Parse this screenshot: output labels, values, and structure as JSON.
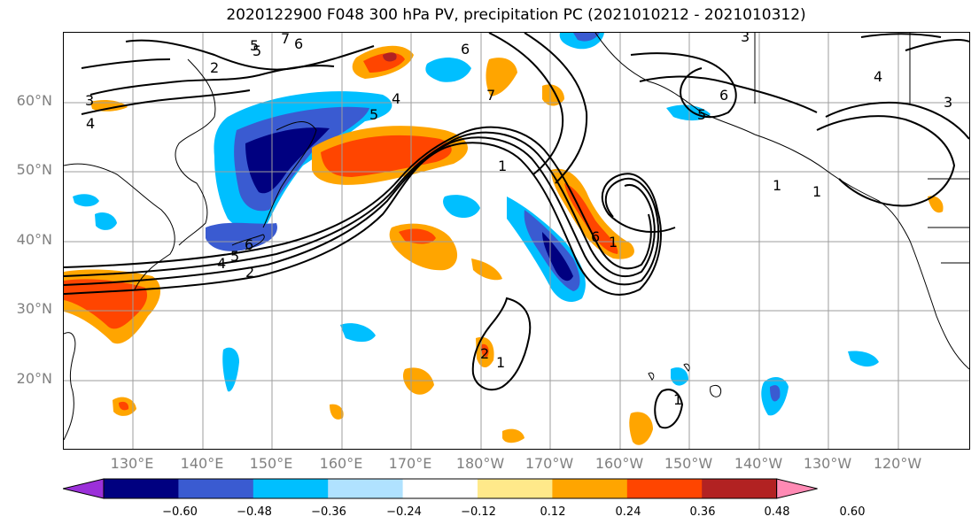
{
  "title": "2020122900 F048 300 hPa PV, precipitation PC (2021010212 - 2021010312)",
  "lat_labels": [
    "60°N",
    "50°N",
    "40°N",
    "30°N",
    "20°N"
  ],
  "lon_labels": [
    "130°E",
    "140°E",
    "150°E",
    "160°E",
    "170°E",
    "180°W",
    "170°W",
    "160°W",
    "150°W",
    "140°W",
    "130°W",
    "120°W"
  ],
  "colorbar": {
    "ticks": [
      "−0.60",
      "−0.48",
      "−0.36",
      "−0.24",
      "−0.12",
      "0.12",
      "0.24",
      "0.36",
      "0.48",
      "0.60"
    ],
    "colors": [
      "#9b30d9",
      "#000080",
      "#3a5bd1",
      "#00bfff",
      "#b0e2ff",
      "#ffffff",
      "#ffe98a",
      "#ffa500",
      "#ff4500",
      "#b22222",
      "#ff8ab4"
    ]
  },
  "contour_labels": [
    "2",
    "5",
    "6",
    "6",
    "7",
    "5",
    "3",
    "3",
    "4",
    "4",
    "6",
    "5",
    "3",
    "4",
    "5",
    "6",
    "4",
    "5",
    "2",
    "6",
    "7",
    "1",
    "1",
    "2",
    "1",
    "1",
    "1",
    "1"
  ]
}
